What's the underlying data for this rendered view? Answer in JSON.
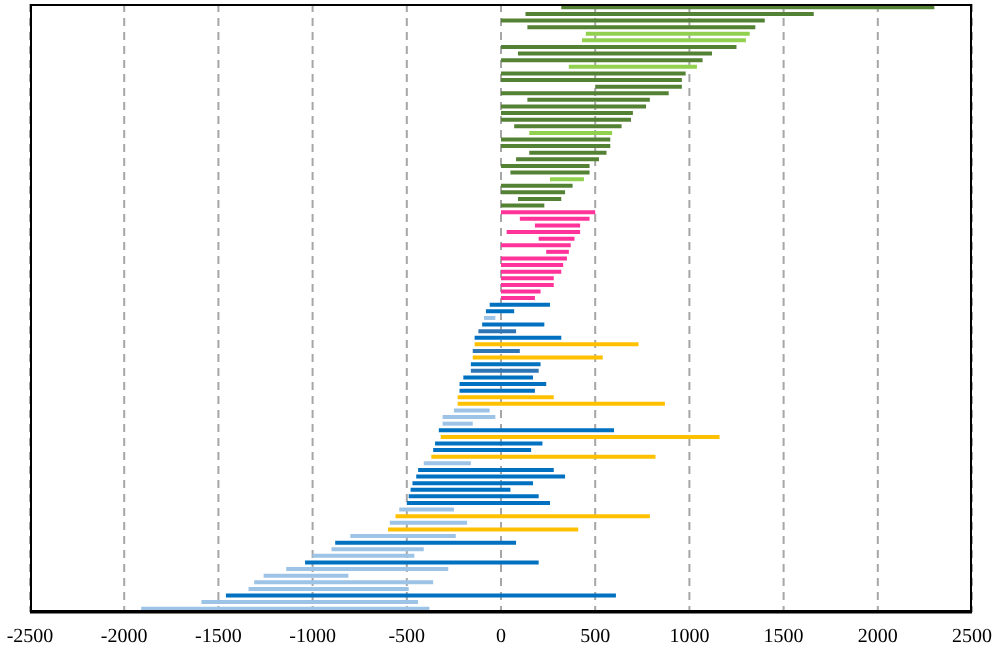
{
  "chart_data": {
    "type": "bar",
    "orientation": "horizontal",
    "categories": [
      null,
      null,
      null,
      null,
      null,
      null,
      null,
      null,
      null,
      null,
      null,
      null,
      null,
      null,
      null,
      null,
      null,
      null,
      null,
      null,
      null,
      null,
      null,
      null,
      null,
      null,
      null,
      null,
      null,
      null,
      null,
      null,
      null,
      null,
      null,
      null,
      null,
      null,
      null,
      null,
      null,
      null,
      null,
      null,
      null,
      null,
      null,
      null,
      null,
      null,
      null,
      null,
      null,
      null,
      null,
      null,
      null,
      null,
      null,
      null,
      null,
      null,
      null,
      null,
      null,
      null,
      null,
      null,
      null,
      null,
      null,
      null,
      null,
      null,
      null,
      null,
      null,
      null,
      null,
      null,
      null,
      null,
      null,
      null,
      null,
      null,
      null,
      null,
      null,
      null,
      null,
      null
    ],
    "base": [
      320,
      130,
      0,
      140,
      450,
      430,
      0,
      90,
      0,
      360,
      0,
      0,
      500,
      0,
      140,
      0,
      0,
      0,
      70,
      150,
      0,
      0,
      150,
      80,
      0,
      50,
      260,
      0,
      0,
      90,
      0,
      0,
      100,
      180,
      30,
      200,
      0,
      240,
      0,
      0,
      0,
      0,
      0,
      0,
      0,
      -60,
      -80,
      -90,
      -100,
      -120,
      -140,
      -140,
      -150,
      -150,
      -160,
      -160,
      -200,
      -220,
      -220,
      -230,
      -230,
      -250,
      -310,
      -310,
      -330,
      -320,
      -350,
      -360,
      -370,
      -410,
      -440,
      -450,
      -470,
      -480,
      -490,
      -500,
      -540,
      -560,
      -590,
      -600,
      -800,
      -880,
      -900,
      -1000,
      -1040,
      -1140,
      -1260,
      -1310,
      -1340,
      -1460,
      -1590,
      -1910
    ],
    "values": [
      1980,
      1530,
      1400,
      1210,
      870,
      870,
      1250,
      1030,
      1070,
      680,
      980,
      960,
      460,
      890,
      650,
      770,
      700,
      690,
      570,
      440,
      580,
      580,
      410,
      440,
      470,
      420,
      180,
      380,
      340,
      230,
      230,
      500,
      370,
      240,
      390,
      190,
      370,
      120,
      350,
      330,
      320,
      280,
      280,
      210,
      180,
      320,
      150,
      60,
      330,
      200,
      460,
      870,
      250,
      690,
      370,
      360,
      370,
      460,
      400,
      510,
      1100,
      190,
      280,
      160,
      930,
      1480,
      570,
      520,
      1190,
      250,
      720,
      790,
      640,
      530,
      690,
      760,
      290,
      1350,
      410,
      1010,
      560,
      960,
      490,
      540,
      1240,
      860,
      450,
      950,
      850,
      2070,
      1150,
      1530
    ],
    "colors": [
      "#548235",
      "#548235",
      "#548235",
      "#548235",
      "#92d050",
      "#92d050",
      "#548235",
      "#548235",
      "#548235",
      "#92d050",
      "#548235",
      "#548235",
      "#548235",
      "#548235",
      "#548235",
      "#548235",
      "#548235",
      "#548235",
      "#548235",
      "#92d050",
      "#548235",
      "#548235",
      "#548235",
      "#548235",
      "#548235",
      "#548235",
      "#92d050",
      "#548235",
      "#548235",
      "#548235",
      "#548235",
      "#ff3399",
      "#ff3399",
      "#ff3399",
      "#ff3399",
      "#ff3399",
      "#ff3399",
      "#ff3399",
      "#ff3399",
      "#ff3399",
      "#ff3399",
      "#ff3399",
      "#ff3399",
      "#ff3399",
      "#ff3399",
      "#0070c0",
      "#0070c0",
      "#9dc3e6",
      "#0070c0",
      "#2e75b6",
      "#0070c0",
      "#ffc000",
      "#2e75b6",
      "#ffc000",
      "#0070c0",
      "#2e75b6",
      "#0070c0",
      "#0070c0",
      "#0070c0",
      "#ffc000",
      "#ffc000",
      "#9dc3e6",
      "#9dc3e6",
      "#9dc3e6",
      "#0070c0",
      "#ffc000",
      "#0070c0",
      "#0070c0",
      "#ffc000",
      "#9dc3e6",
      "#0070c0",
      "#0070c0",
      "#0070c0",
      "#0070c0",
      "#0070c0",
      "#0070c0",
      "#9dc3e6",
      "#ffc000",
      "#9dc3e6",
      "#ffc000",
      "#9dc3e6",
      "#0070c0",
      "#9dc3e6",
      "#9dc3e6",
      "#0070c0",
      "#9dc3e6",
      "#9dc3e6",
      "#9dc3e6",
      "#9dc3e6",
      "#0070c0",
      "#9dc3e6",
      "#9dc3e6"
    ],
    "xlim": [
      -2500,
      2500
    ],
    "xticks": [
      -2500,
      -2000,
      -1500,
      -1000,
      -500,
      0,
      500,
      1000,
      1500,
      2000,
      2500
    ],
    "grid": "x",
    "tick_labels": "x",
    "legend": false
  }
}
